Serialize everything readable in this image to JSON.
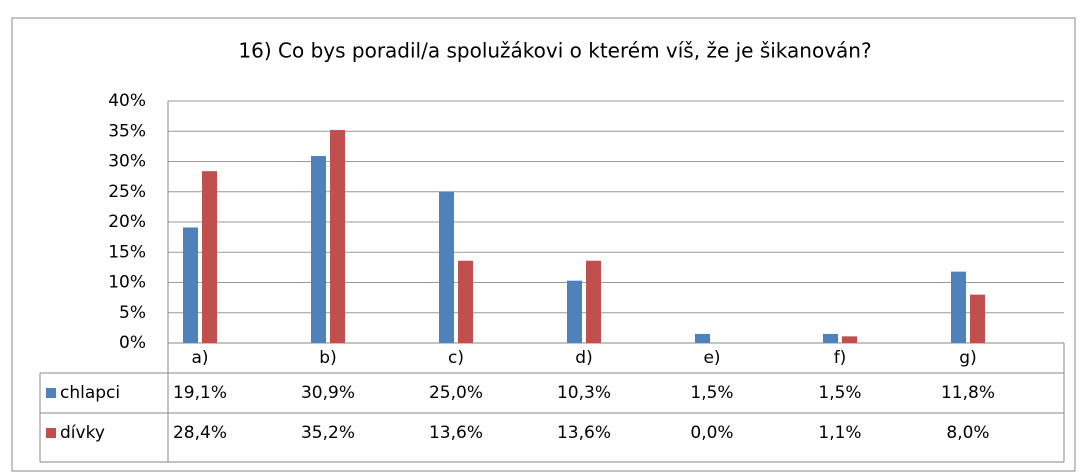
{
  "chart_data": {
    "type": "bar",
    "title": "16) Co bys poradil/a spolužákovi o kterém víš, že je šikanován?",
    "categories": [
      "a)",
      "b)",
      "c)",
      "d)",
      "e)",
      "f)",
      "g)"
    ],
    "series": [
      {
        "name": "chlapci",
        "color": "#4f81bd",
        "values": [
          19.1,
          30.9,
          25.0,
          10.3,
          1.5,
          1.5,
          11.8
        ],
        "value_labels": [
          "19,1%",
          "30,9%",
          "25,0%",
          "10,3%",
          "1,5%",
          "1,5%",
          "11,8%"
        ]
      },
      {
        "name": "dívky",
        "color": "#c0504d",
        "values": [
          28.4,
          35.2,
          13.6,
          13.6,
          0.0,
          1.1,
          8.0
        ],
        "value_labels": [
          "28,4%",
          "35,2%",
          "13,6%",
          "13,6%",
          "0,0%",
          "1,1%",
          "8,0%"
        ]
      }
    ],
    "ylim": [
      0,
      40
    ],
    "yticks": [
      {
        "value": 0,
        "label": "0%"
      },
      {
        "value": 5,
        "label": "5%"
      },
      {
        "value": 10,
        "label": "10%"
      },
      {
        "value": 15,
        "label": "15%"
      },
      {
        "value": 20,
        "label": "20%"
      },
      {
        "value": 25,
        "label": "25%"
      },
      {
        "value": 30,
        "label": "30%"
      },
      {
        "value": 35,
        "label": "35%"
      },
      {
        "value": 40,
        "label": "40%"
      }
    ],
    "grid": true
  }
}
